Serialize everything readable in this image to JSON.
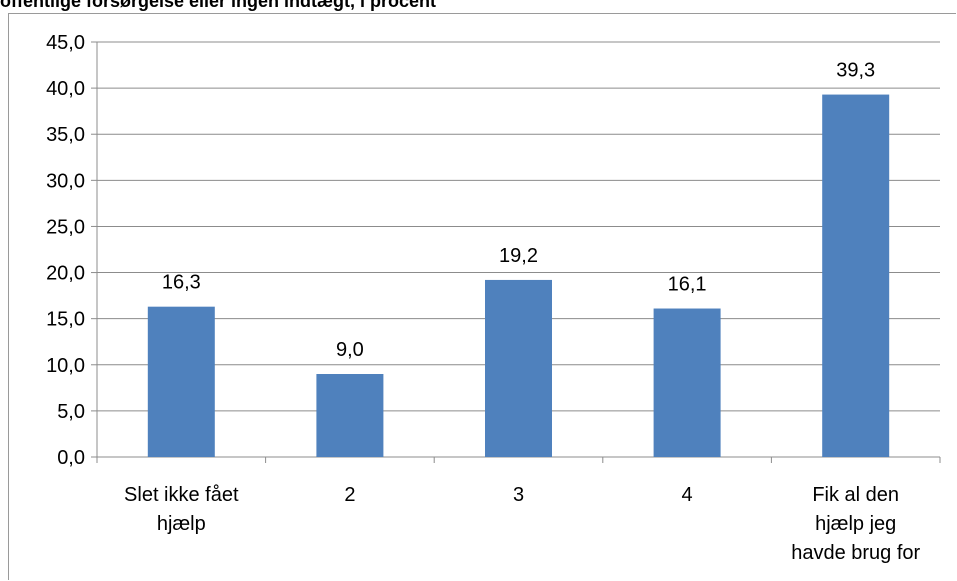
{
  "chart_data": {
    "type": "bar",
    "title": "offentlige forsørgelse eller ingen indtægt, i procent",
    "categories": [
      [
        "Slet ikke fået",
        "hjælp"
      ],
      [
        "2"
      ],
      [
        "3"
      ],
      [
        "4"
      ],
      [
        "Fik al den",
        "hjælp jeg",
        "havde brug for"
      ]
    ],
    "values": [
      16.3,
      9.0,
      19.2,
      16.1,
      39.3
    ],
    "value_labels": [
      "16,3",
      "9,0",
      "19,2",
      "16,1",
      "39,3"
    ],
    "ylim": [
      0,
      45
    ],
    "yticks": [
      "0,0",
      "5,0",
      "10,0",
      "15,0",
      "20,0",
      "25,0",
      "30,0",
      "35,0",
      "40,0",
      "45,0"
    ],
    "grid": true,
    "bar_color": "#4f81bd",
    "xlabel": "",
    "ylabel": ""
  }
}
